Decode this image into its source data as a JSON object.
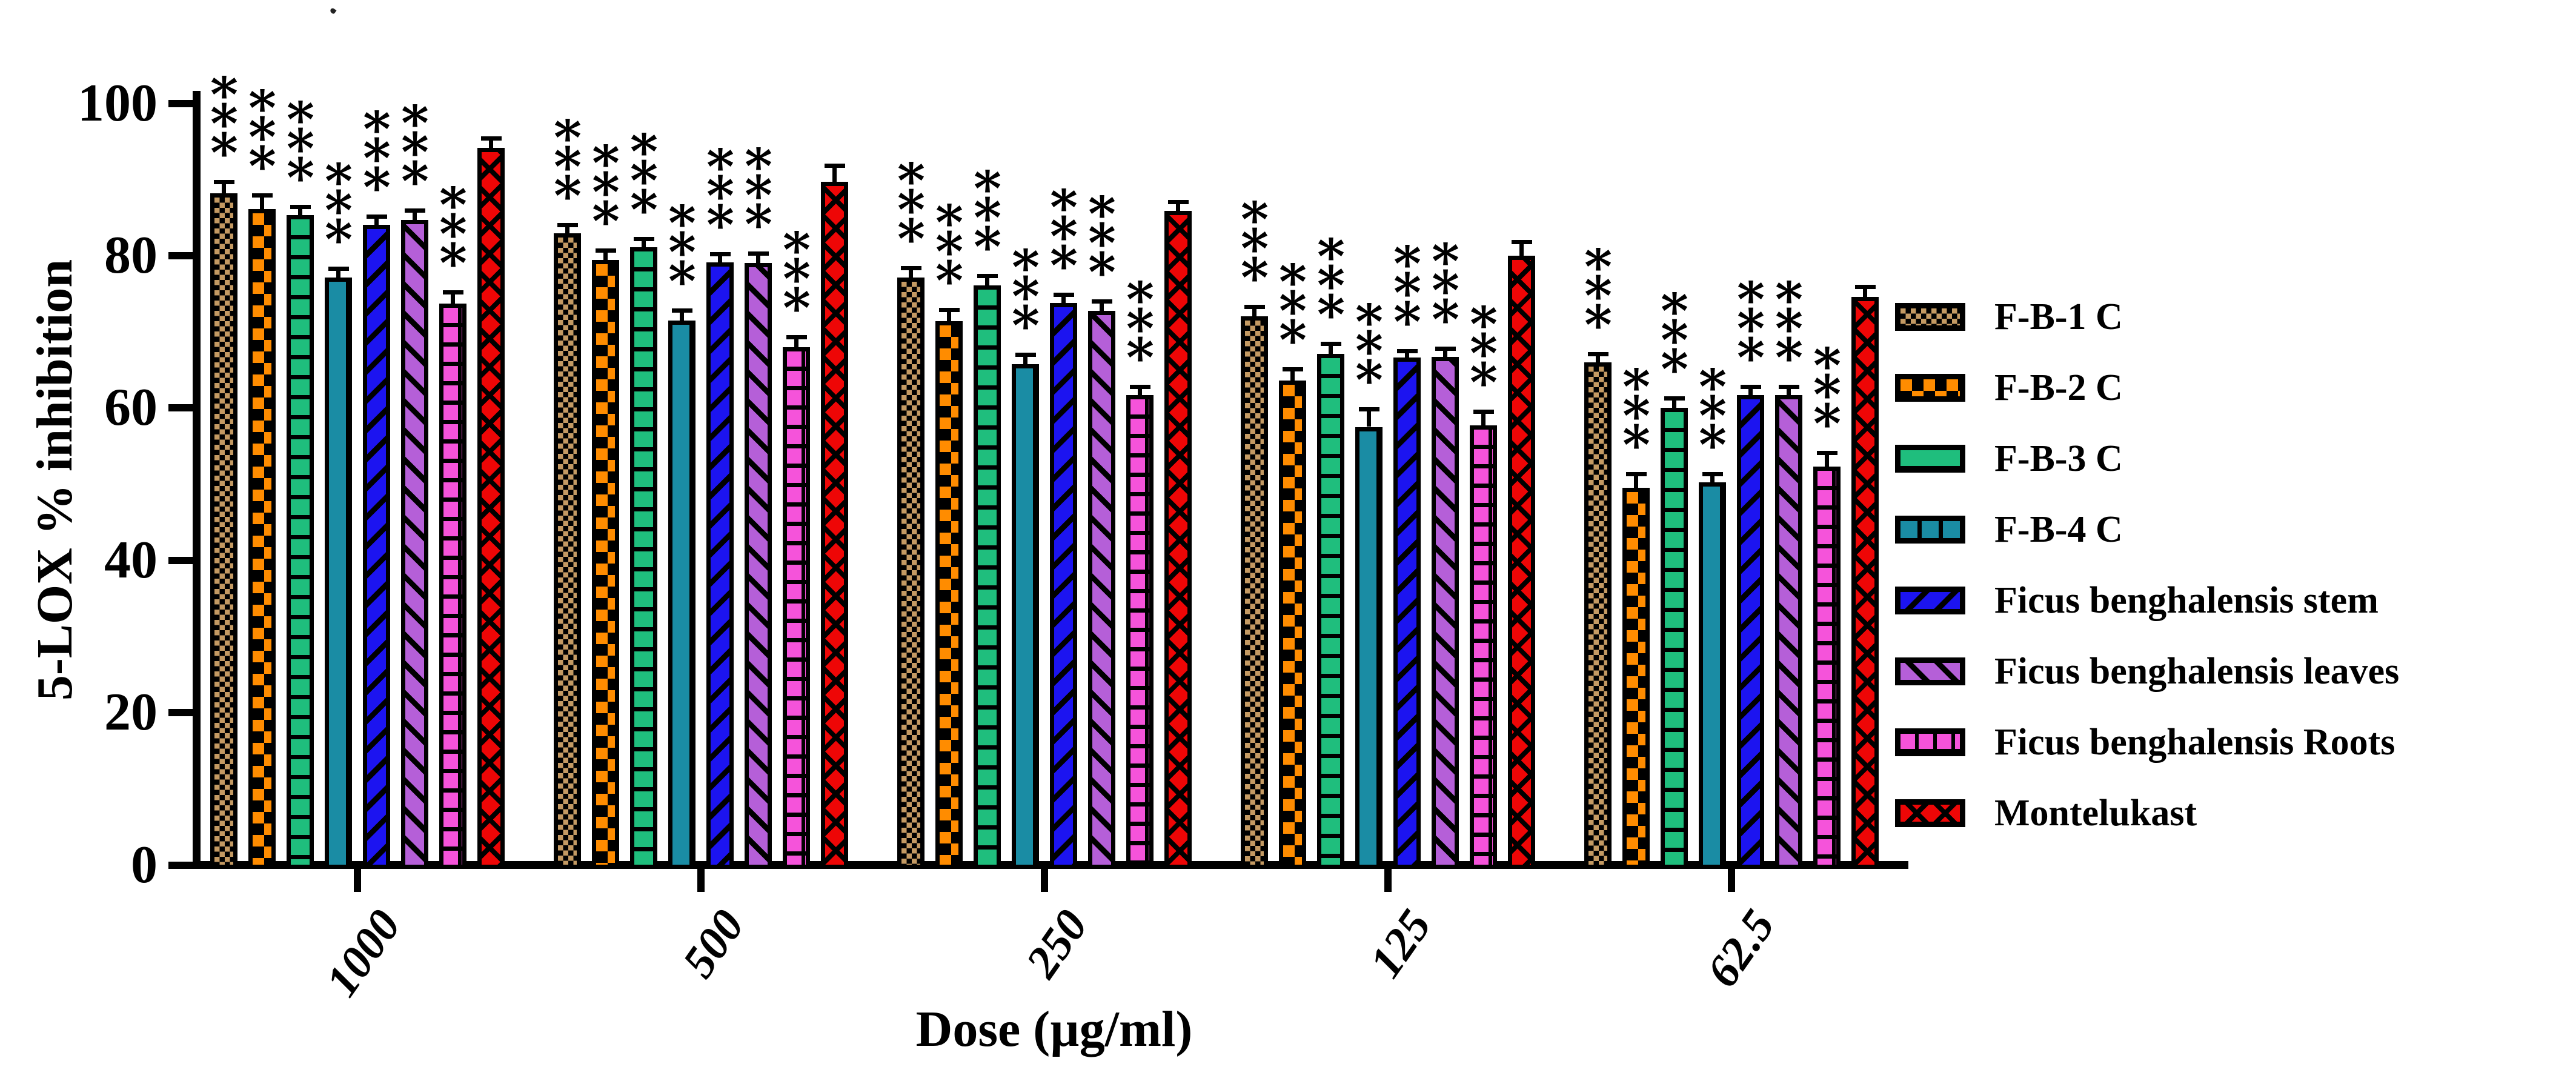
{
  "figure": {
    "background": "#ffffff",
    "artifact_dot": true
  },
  "chart_data": {
    "type": "bar",
    "title": "",
    "xlabel": "Dose (µg/ml)",
    "ylabel": "5-LOX % inhibition",
    "categories": [
      "1000",
      "500",
      "250",
      "125",
      "62.5"
    ],
    "y_ticks": [
      0,
      20,
      40,
      60,
      80,
      100
    ],
    "ylim": [
      0,
      100
    ],
    "grid": false,
    "legend_position": "right",
    "error_bars": "sd, cap style T",
    "significance_marker": "***",
    "significance_marker_orientation": "vertical-stacked",
    "series": [
      {
        "name": "F-B-1 C",
        "color": "#C49A63",
        "pattern": "checker-fine",
        "starred": true,
        "values": [
          87.7,
          82.4,
          76.6,
          71.5,
          65.5
        ],
        "errors": [
          1.2,
          0.8,
          1.0,
          1.0,
          0.8
        ]
      },
      {
        "name": "F-B-2 C",
        "color": "#FF8C00",
        "pattern": "checker-coarse",
        "starred": true,
        "values": [
          85.6,
          78.9,
          70.9,
          63.1,
          49.0
        ],
        "errors": [
          1.5,
          1.0,
          1.2,
          1.2,
          1.5
        ]
      },
      {
        "name": "F-B-3 C",
        "color": "#1FBE7D",
        "pattern": "hlines",
        "starred": true,
        "values": [
          84.8,
          80.6,
          75.6,
          66.6,
          59.5
        ],
        "errors": [
          0.8,
          0.8,
          0.9,
          1.0,
          1.0
        ]
      },
      {
        "name": "F-B-4 C",
        "color": "#1A8CA4",
        "pattern": "vlines",
        "starred": true,
        "values": [
          76.6,
          71.0,
          65.2,
          57.0,
          49.7
        ],
        "errors": [
          0.9,
          1.0,
          1.0,
          2.0,
          0.8
        ]
      },
      {
        "name": "Ficus benghalensis stem",
        "color": "#1C14F0",
        "pattern": "diag-up",
        "starred": true,
        "values": [
          83.5,
          78.6,
          73.3,
          66.1,
          61.2
        ],
        "errors": [
          0.8,
          0.8,
          0.8,
          0.6,
          0.8
        ]
      },
      {
        "name": "Ficus benghalensis leaves",
        "color": "#B55FD8",
        "pattern": "diag-down",
        "starred": true,
        "values": [
          84.2,
          78.5,
          72.2,
          66.2,
          61.2
        ],
        "errors": [
          0.9,
          1.0,
          1.0,
          0.8,
          0.8
        ]
      },
      {
        "name": "Ficus benghalensis Roots",
        "color": "#F553DA",
        "pattern": "brick",
        "starred": true,
        "values": [
          73.2,
          67.5,
          61.2,
          57.2,
          51.8
        ],
        "errors": [
          1.2,
          1.0,
          0.8,
          1.5,
          1.5
        ]
      },
      {
        "name": "Montelukast",
        "color": "#EE0606",
        "pattern": "crosshatch",
        "starred": false,
        "values": [
          93.6,
          89.2,
          85.4,
          79.5,
          74.1
        ],
        "errors": [
          1.0,
          1.8,
          0.8,
          1.5,
          1.0
        ]
      }
    ]
  }
}
